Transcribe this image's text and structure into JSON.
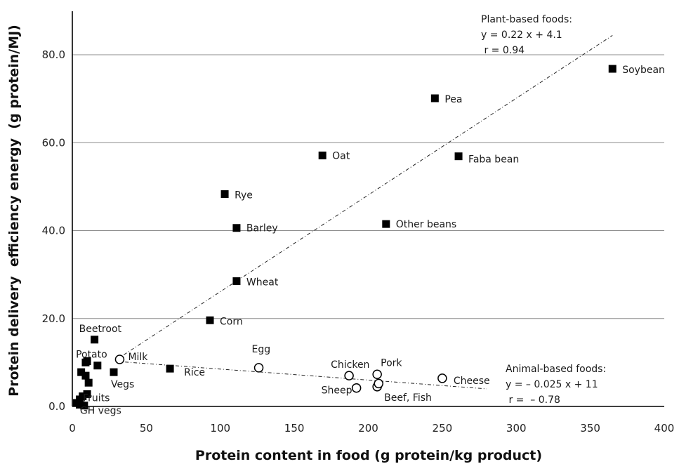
{
  "chart_data": {
    "type": "scatter",
    "xlabel": "Protein content in food (g protein/kg product)",
    "ylabel": "Protein delivery  efficiency energy  (g protein/MJ)",
    "xlim": [
      0,
      400
    ],
    "ylim": [
      0,
      90
    ],
    "x_ticks": [
      "0",
      "50",
      "100",
      "150",
      "200",
      "250",
      "300",
      "350",
      "400"
    ],
    "y_ticks": [
      "0.0",
      "20.0",
      "40.0",
      "60.0",
      "80.0"
    ],
    "grid": "horizontal",
    "series": [
      {
        "name": "Plant-based foods",
        "marker": "filled-square",
        "points": [
          {
            "label": "Soybean",
            "x": 365,
            "y": 76.8
          },
          {
            "label": "Pea",
            "x": 245,
            "y": 70.1
          },
          {
            "label": "Faba bean",
            "x": 261,
            "y": 56.9
          },
          {
            "label": "Oat",
            "x": 169,
            "y": 57.1
          },
          {
            "label": "Rye",
            "x": 103,
            "y": 48.3
          },
          {
            "label": "Barley",
            "x": 111,
            "y": 40.6
          },
          {
            "label": "Other beans",
            "x": 212,
            "y": 41.5
          },
          {
            "label": "Wheat",
            "x": 111,
            "y": 28.5
          },
          {
            "label": "Corn",
            "x": 93,
            "y": 19.6
          },
          {
            "label": "Rice",
            "x": 66,
            "y": 8.6
          },
          {
            "label": "Beetroot",
            "x": 15,
            "y": 15.2
          },
          {
            "label": "Potato",
            "x": 10,
            "y": 10.3
          },
          {
            "label": "Vegs",
            "x": 28,
            "y": 7.8
          },
          {
            "label": "Fruits",
            "x": 10,
            "y": 2.8
          },
          {
            "label": "GH vegs",
            "x": 8,
            "y": 0.2
          },
          {
            "label": "",
            "x": 9,
            "y": 10.0
          },
          {
            "label": "",
            "x": 17,
            "y": 9.3
          },
          {
            "label": "",
            "x": 6,
            "y": 7.8
          },
          {
            "label": "",
            "x": 9,
            "y": 7.0
          },
          {
            "label": "",
            "x": 11,
            "y": 5.4
          },
          {
            "label": "",
            "x": 7,
            "y": 2.3
          },
          {
            "label": "",
            "x": 5,
            "y": 1.6
          },
          {
            "label": "",
            "x": 3,
            "y": 0.8
          },
          {
            "label": "",
            "x": 5,
            "y": 0.4
          }
        ],
        "trendline": {
          "equation_label": "Plant-based foods:",
          "equation": "y = 0.22 x + 4.1",
          "r": " r = 0.94",
          "slope": 0.22,
          "intercept": 4.1,
          "x_range": [
            30,
            365
          ]
        }
      },
      {
        "name": "Animal-based foods",
        "marker": "open-circle",
        "points": [
          {
            "label": "Milk",
            "x": 32,
            "y": 10.7
          },
          {
            "label": "Egg",
            "x": 126,
            "y": 8.8
          },
          {
            "label": "Chicken",
            "x": 187,
            "y": 7.0
          },
          {
            "label": "Pork",
            "x": 206,
            "y": 7.3
          },
          {
            "label": "Sheep",
            "x": 192,
            "y": 4.2
          },
          {
            "label": "Beef, Fish",
            "x": 206,
            "y": 4.5
          },
          {
            "label": "",
            "x": 207,
            "y": 5.2
          },
          {
            "label": "Cheese",
            "x": 250,
            "y": 6.4
          }
        ],
        "trendline": {
          "equation_label": "Animal-based foods:",
          "equation": "y = – 0.025 x + 11",
          "r": " r =  – 0.78",
          "slope": -0.025,
          "intercept": 11,
          "x_range": [
            30,
            280
          ]
        }
      }
    ]
  }
}
